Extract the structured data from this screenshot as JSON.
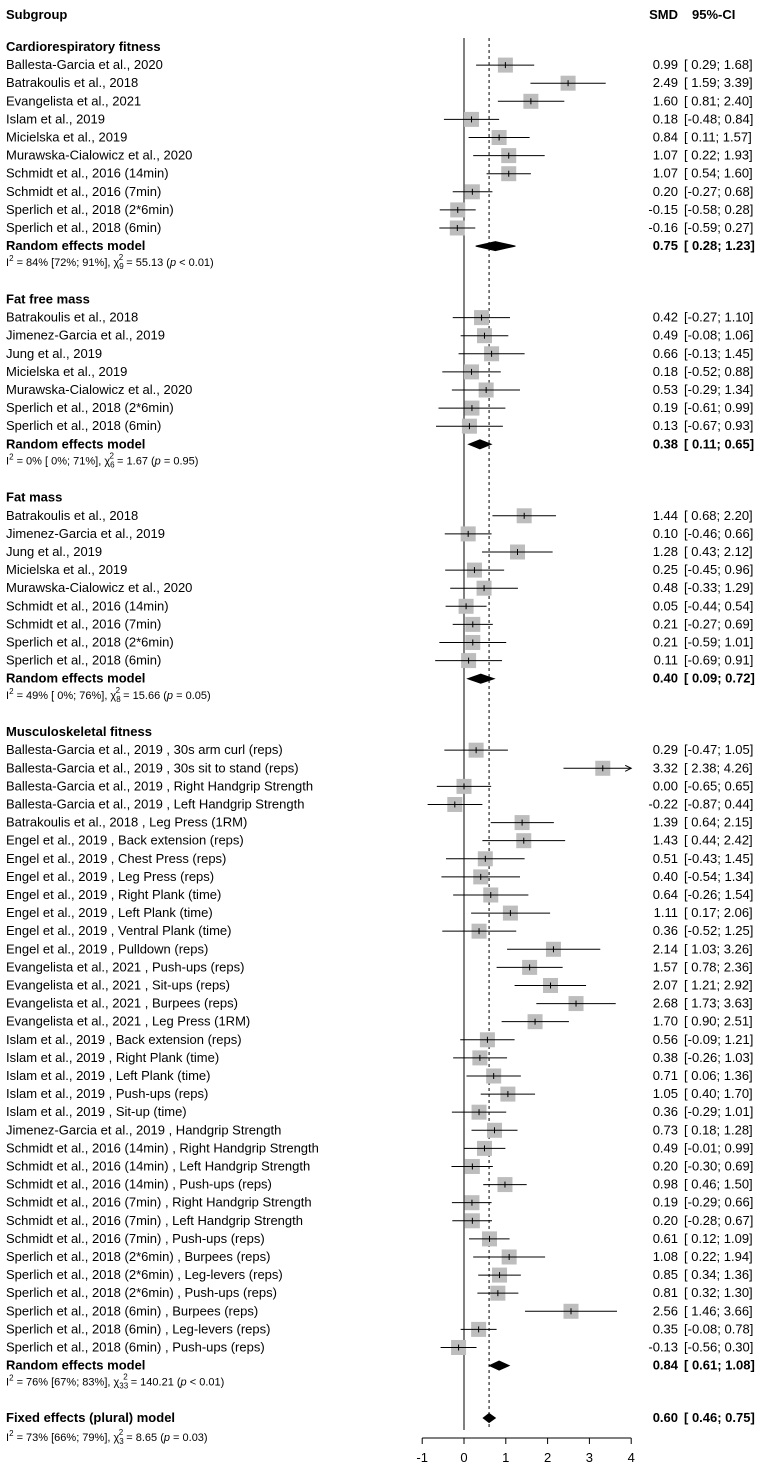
{
  "chart_data": {
    "type": "forest",
    "header": {
      "subgroup": "Subgroup",
      "smd": "SMD",
      "ci": "95%-CI"
    },
    "x_ticks": [
      -1,
      0,
      1,
      2,
      3,
      4
    ],
    "xlim": [
      -1,
      4
    ],
    "null_value": 0,
    "reference_line": 0.6,
    "groups": [
      {
        "title": "Cardiorespiratory fitness",
        "studies": [
          {
            "label": "Ballesta-Garcia et al., 2020",
            "smd": 0.99,
            "lo": 0.29,
            "hi": 1.68,
            "smd_text": "0.99",
            "ci_text": "[ 0.29; 1.68]"
          },
          {
            "label": "Batrakoulis et al., 2018",
            "smd": 2.49,
            "lo": 1.59,
            "hi": 3.39,
            "smd_text": "2.49",
            "ci_text": "[ 1.59; 3.39]"
          },
          {
            "label": "Evangelista et al., 2021",
            "smd": 1.6,
            "lo": 0.81,
            "hi": 2.4,
            "smd_text": "1.60",
            "ci_text": "[ 0.81; 2.40]"
          },
          {
            "label": "Islam et al., 2019",
            "smd": 0.18,
            "lo": -0.48,
            "hi": 0.84,
            "smd_text": "0.18",
            "ci_text": "[-0.48; 0.84]"
          },
          {
            "label": "Micielska et al., 2019",
            "smd": 0.84,
            "lo": 0.11,
            "hi": 1.57,
            "smd_text": "0.84",
            "ci_text": "[ 0.11; 1.57]"
          },
          {
            "label": "Murawska-Cialowicz et al., 2020",
            "smd": 1.07,
            "lo": 0.22,
            "hi": 1.93,
            "smd_text": "1.07",
            "ci_text": "[ 0.22; 1.93]"
          },
          {
            "label": "Schmidt et al., 2016 (14min)",
            "smd": 1.07,
            "lo": 0.54,
            "hi": 1.6,
            "smd_text": "1.07",
            "ci_text": "[ 0.54; 1.60]"
          },
          {
            "label": "Schmidt et al., 2016 (7min)",
            "smd": 0.2,
            "lo": -0.27,
            "hi": 0.68,
            "smd_text": "0.20",
            "ci_text": "[-0.27; 0.68]"
          },
          {
            "label": "Sperlich et al., 2018 (2*6min)",
            "smd": -0.15,
            "lo": -0.58,
            "hi": 0.28,
            "smd_text": "-0.15",
            "ci_text": "[-0.58; 0.28]"
          },
          {
            "label": "Sperlich et al., 2018 (6min)",
            "smd": -0.16,
            "lo": -0.59,
            "hi": 0.27,
            "smd_text": "-0.16",
            "ci_text": "[-0.59; 0.27]"
          }
        ],
        "summary": {
          "label": "Random effects model",
          "smd": 0.75,
          "lo": 0.28,
          "hi": 1.23,
          "smd_text": "0.75",
          "ci_text": "[ 0.28; 1.23]"
        },
        "heterogeneity": {
          "i2": "84% [72%; 91%]",
          "df": "9",
          "q": "55.13",
          "p": "p < 0.01"
        }
      },
      {
        "title": "Fat free mass",
        "studies": [
          {
            "label": "Batrakoulis et al., 2018",
            "smd": 0.42,
            "lo": -0.27,
            "hi": 1.1,
            "smd_text": "0.42",
            "ci_text": "[-0.27; 1.10]"
          },
          {
            "label": "Jimenez-Garcia et al., 2019",
            "smd": 0.49,
            "lo": -0.08,
            "hi": 1.06,
            "smd_text": "0.49",
            "ci_text": "[-0.08; 1.06]"
          },
          {
            "label": "Jung et al., 2019",
            "smd": 0.66,
            "lo": -0.13,
            "hi": 1.45,
            "smd_text": "0.66",
            "ci_text": "[-0.13; 1.45]"
          },
          {
            "label": "Micielska et al., 2019",
            "smd": 0.18,
            "lo": -0.52,
            "hi": 0.88,
            "smd_text": "0.18",
            "ci_text": "[-0.52; 0.88]"
          },
          {
            "label": "Murawska-Cialowicz et al., 2020",
            "smd": 0.53,
            "lo": -0.29,
            "hi": 1.34,
            "smd_text": "0.53",
            "ci_text": "[-0.29; 1.34]"
          },
          {
            "label": "Sperlich et al., 2018 (2*6min)",
            "smd": 0.19,
            "lo": -0.61,
            "hi": 0.99,
            "smd_text": "0.19",
            "ci_text": "[-0.61; 0.99]"
          },
          {
            "label": "Sperlich et al., 2018 (6min)",
            "smd": 0.13,
            "lo": -0.67,
            "hi": 0.93,
            "smd_text": "0.13",
            "ci_text": "[-0.67; 0.93]"
          }
        ],
        "summary": {
          "label": "Random effects model",
          "smd": 0.38,
          "lo": 0.11,
          "hi": 0.65,
          "smd_text": "0.38",
          "ci_text": "[ 0.11; 0.65]"
        },
        "heterogeneity": {
          "i2": "0% [ 0%; 71%]",
          "df": "6",
          "q": "1.67",
          "p": "p = 0.95"
        }
      },
      {
        "title": "Fat mass",
        "studies": [
          {
            "label": "Batrakoulis et al., 2018",
            "smd": 1.44,
            "lo": 0.68,
            "hi": 2.2,
            "smd_text": "1.44",
            "ci_text": "[ 0.68; 2.20]"
          },
          {
            "label": "Jimenez-Garcia et al., 2019",
            "smd": 0.1,
            "lo": -0.46,
            "hi": 0.66,
            "smd_text": "0.10",
            "ci_text": "[-0.46; 0.66]"
          },
          {
            "label": "Jung et al., 2019",
            "smd": 1.28,
            "lo": 0.43,
            "hi": 2.12,
            "smd_text": "1.28",
            "ci_text": "[ 0.43; 2.12]"
          },
          {
            "label": "Micielska et al., 2019",
            "smd": 0.25,
            "lo": -0.45,
            "hi": 0.96,
            "smd_text": "0.25",
            "ci_text": "[-0.45; 0.96]"
          },
          {
            "label": "Murawska-Cialowicz et al., 2020",
            "smd": 0.48,
            "lo": -0.33,
            "hi": 1.29,
            "smd_text": "0.48",
            "ci_text": "[-0.33; 1.29]"
          },
          {
            "label": "Schmidt et al., 2016 (14min)",
            "smd": 0.05,
            "lo": -0.44,
            "hi": 0.54,
            "smd_text": "0.05",
            "ci_text": "[-0.44; 0.54]"
          },
          {
            "label": "Schmidt et al., 2016 (7min)",
            "smd": 0.21,
            "lo": -0.27,
            "hi": 0.69,
            "smd_text": "0.21",
            "ci_text": "[-0.27; 0.69]"
          },
          {
            "label": "Sperlich et al., 2018 (2*6min)",
            "smd": 0.21,
            "lo": -0.59,
            "hi": 1.01,
            "smd_text": "0.21",
            "ci_text": "[-0.59; 1.01]"
          },
          {
            "label": "Sperlich et al., 2018 (6min)",
            "smd": 0.11,
            "lo": -0.69,
            "hi": 0.91,
            "smd_text": "0.11",
            "ci_text": "[-0.69; 0.91]"
          }
        ],
        "summary": {
          "label": "Random effects model",
          "smd": 0.4,
          "lo": 0.09,
          "hi": 0.72,
          "smd_text": "0.40",
          "ci_text": "[ 0.09; 0.72]"
        },
        "heterogeneity": {
          "i2": "49% [ 0%; 76%]",
          "df": "8",
          "q": "15.66",
          "p": "p = 0.05"
        }
      },
      {
        "title": "Musculoskeletal fitness",
        "studies": [
          {
            "label": "Ballesta-Garcia et al., 2019 , 30s arm curl (reps)",
            "smd": 0.29,
            "lo": -0.47,
            "hi": 1.05,
            "smd_text": "0.29",
            "ci_text": "[-0.47; 1.05]"
          },
          {
            "label": "Ballesta-Garcia et al., 2019 , 30s sit to stand (reps)",
            "smd": 3.32,
            "lo": 2.38,
            "hi": 4.26,
            "smd_text": "3.32",
            "ci_text": "[ 2.38; 4.26]"
          },
          {
            "label": "Ballesta-Garcia et al., 2019 , Right Handgrip Strength",
            "smd": 0.0,
            "lo": -0.65,
            "hi": 0.65,
            "smd_text": "0.00",
            "ci_text": "[-0.65; 0.65]"
          },
          {
            "label": "Ballesta-Garcia et al., 2019 , Left Handgrip Strength",
            "smd": -0.22,
            "lo": -0.87,
            "hi": 0.44,
            "smd_text": "-0.22",
            "ci_text": "[-0.87; 0.44]"
          },
          {
            "label": "Batrakoulis et al., 2018 , Leg Press (1RM)",
            "smd": 1.39,
            "lo": 0.64,
            "hi": 2.15,
            "smd_text": "1.39",
            "ci_text": "[ 0.64; 2.15]"
          },
          {
            "label": "Engel et al., 2019 , Back extension (reps)",
            "smd": 1.43,
            "lo": 0.44,
            "hi": 2.42,
            "smd_text": "1.43",
            "ci_text": "[ 0.44; 2.42]"
          },
          {
            "label": "Engel et al., 2019 , Chest Press (reps)",
            "smd": 0.51,
            "lo": -0.43,
            "hi": 1.45,
            "smd_text": "0.51",
            "ci_text": "[-0.43; 1.45]"
          },
          {
            "label": "Engel et al., 2019 , Leg Press (reps)",
            "smd": 0.4,
            "lo": -0.54,
            "hi": 1.34,
            "smd_text": "0.40",
            "ci_text": "[-0.54; 1.34]"
          },
          {
            "label": "Engel et al., 2019 , Right Plank (time)",
            "smd": 0.64,
            "lo": -0.26,
            "hi": 1.54,
            "smd_text": "0.64",
            "ci_text": "[-0.26; 1.54]"
          },
          {
            "label": "Engel et al., 2019 , Left Plank (time)",
            "smd": 1.11,
            "lo": 0.17,
            "hi": 2.06,
            "smd_text": "1.11",
            "ci_text": "[ 0.17; 2.06]"
          },
          {
            "label": "Engel et al., 2019 , Ventral Plank (time)",
            "smd": 0.36,
            "lo": -0.52,
            "hi": 1.25,
            "smd_text": "0.36",
            "ci_text": "[-0.52; 1.25]"
          },
          {
            "label": "Engel et al., 2019 , Pulldown (reps)",
            "smd": 2.14,
            "lo": 1.03,
            "hi": 3.26,
            "smd_text": "2.14",
            "ci_text": "[ 1.03; 3.26]"
          },
          {
            "label": "Evangelista et al., 2021 , Push-ups (reps)",
            "smd": 1.57,
            "lo": 0.78,
            "hi": 2.36,
            "smd_text": "1.57",
            "ci_text": "[ 0.78; 2.36]"
          },
          {
            "label": "Evangelista et al., 2021 , Sit-ups (reps)",
            "smd": 2.07,
            "lo": 1.21,
            "hi": 2.92,
            "smd_text": "2.07",
            "ci_text": "[ 1.21; 2.92]"
          },
          {
            "label": "Evangelista et al., 2021 , Burpees (reps)",
            "smd": 2.68,
            "lo": 1.73,
            "hi": 3.63,
            "smd_text": "2.68",
            "ci_text": "[ 1.73; 3.63]"
          },
          {
            "label": "Evangelista et al., 2021 , Leg Press (1RM)",
            "smd": 1.7,
            "lo": 0.9,
            "hi": 2.51,
            "smd_text": "1.70",
            "ci_text": "[ 0.90; 2.51]"
          },
          {
            "label": "Islam et al., 2019 , Back extension (reps)",
            "smd": 0.56,
            "lo": -0.09,
            "hi": 1.21,
            "smd_text": "0.56",
            "ci_text": "[-0.09; 1.21]"
          },
          {
            "label": "Islam et al., 2019 , Right Plank (time)",
            "smd": 0.38,
            "lo": -0.26,
            "hi": 1.03,
            "smd_text": "0.38",
            "ci_text": "[-0.26; 1.03]"
          },
          {
            "label": "Islam et al., 2019 , Left Plank (time)",
            "smd": 0.71,
            "lo": 0.06,
            "hi": 1.36,
            "smd_text": "0.71",
            "ci_text": "[ 0.06; 1.36]"
          },
          {
            "label": "Islam et al., 2019 , Push-ups (reps)",
            "smd": 1.05,
            "lo": 0.4,
            "hi": 1.7,
            "smd_text": "1.05",
            "ci_text": "[ 0.40; 1.70]"
          },
          {
            "label": "Islam et al., 2019 , Sit-up (time)",
            "smd": 0.36,
            "lo": -0.29,
            "hi": 1.01,
            "smd_text": "0.36",
            "ci_text": "[-0.29; 1.01]"
          },
          {
            "label": "Jimenez-Garcia et al., 2019 , Handgrip Strength",
            "smd": 0.73,
            "lo": 0.18,
            "hi": 1.28,
            "smd_text": "0.73",
            "ci_text": "[ 0.18; 1.28]"
          },
          {
            "label": "Schmidt et al., 2016 (14min) , Right Handgrip Strength",
            "smd": 0.49,
            "lo": -0.01,
            "hi": 0.99,
            "smd_text": "0.49",
            "ci_text": "[-0.01; 0.99]"
          },
          {
            "label": "Schmidt et al., 2016 (14min) , Left Handgrip Strength",
            "smd": 0.2,
            "lo": -0.3,
            "hi": 0.69,
            "smd_text": "0.20",
            "ci_text": "[-0.30; 0.69]"
          },
          {
            "label": "Schmidt et al., 2016 (14min) , Push-ups (reps)",
            "smd": 0.98,
            "lo": 0.46,
            "hi": 1.5,
            "smd_text": "0.98",
            "ci_text": "[ 0.46; 1.50]"
          },
          {
            "label": "Schmidt et al., 2016 (7min) , Right Handgrip Strength",
            "smd": 0.19,
            "lo": -0.29,
            "hi": 0.66,
            "smd_text": "0.19",
            "ci_text": "[-0.29; 0.66]"
          },
          {
            "label": "Schmidt et al., 2016 (7min) , Left Handgrip Strength",
            "smd": 0.2,
            "lo": -0.28,
            "hi": 0.67,
            "smd_text": "0.20",
            "ci_text": "[-0.28; 0.67]"
          },
          {
            "label": "Schmidt et al., 2016 (7min) , Push-ups (reps)",
            "smd": 0.61,
            "lo": 0.12,
            "hi": 1.09,
            "smd_text": "0.61",
            "ci_text": "[ 0.12; 1.09]"
          },
          {
            "label": "Sperlich et al., 2018 (2*6min) , Burpees (reps)",
            "smd": 1.08,
            "lo": 0.22,
            "hi": 1.94,
            "smd_text": "1.08",
            "ci_text": "[ 0.22; 1.94]"
          },
          {
            "label": "Sperlich et al., 2018 (2*6min) , Leg-levers (reps)",
            "smd": 0.85,
            "lo": 0.34,
            "hi": 1.36,
            "smd_text": "0.85",
            "ci_text": "[ 0.34; 1.36]"
          },
          {
            "label": "Sperlich et al., 2018 (2*6min) , Push-ups (reps)",
            "smd": 0.81,
            "lo": 0.32,
            "hi": 1.3,
            "smd_text": "0.81",
            "ci_text": "[ 0.32; 1.30]"
          },
          {
            "label": "Sperlich et al., 2018 (6min) , Burpees (reps)",
            "smd": 2.56,
            "lo": 1.46,
            "hi": 3.66,
            "smd_text": "2.56",
            "ci_text": "[ 1.46; 3.66]"
          },
          {
            "label": "Sperlich et al., 2018 (6min) , Leg-levers (reps)",
            "smd": 0.35,
            "lo": -0.08,
            "hi": 0.78,
            "smd_text": "0.35",
            "ci_text": "[-0.08; 0.78]"
          },
          {
            "label": "Sperlich et al., 2018 (6min) , Push-ups (reps)",
            "smd": -0.13,
            "lo": -0.56,
            "hi": 0.3,
            "smd_text": "-0.13",
            "ci_text": "[-0.56; 0.30]"
          }
        ],
        "summary": {
          "label": "Random effects model",
          "smd": 0.84,
          "lo": 0.61,
          "hi": 1.08,
          "smd_text": "0.84",
          "ci_text": "[ 0.61; 1.08]"
        },
        "heterogeneity": {
          "i2": "76% [67%; 83%]",
          "df": "33",
          "q": "140.21",
          "p": "p < 0.01"
        }
      }
    ],
    "overall": {
      "label": "Fixed effects (plural) model",
      "smd": 0.6,
      "lo": 0.46,
      "hi": 0.75,
      "smd_text": "0.60",
      "ci_text": "[ 0.46; 0.75]",
      "heterogeneity": {
        "i2": "73% [66%; 79%]",
        "df": "3",
        "q": "8.65",
        "p": "p = 0.03"
      }
    }
  }
}
